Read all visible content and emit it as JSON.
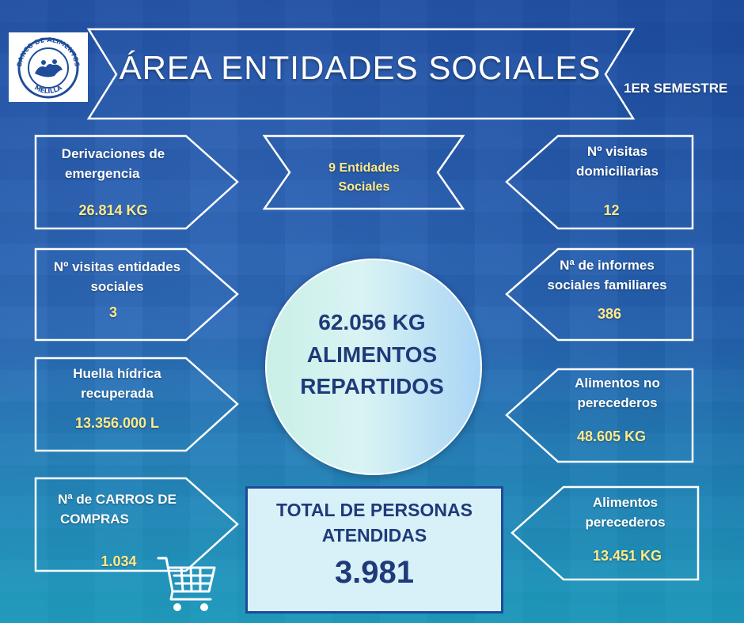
{
  "logo": {
    "arc_text": "BANCO DE ALIMENTOS",
    "city": "MELILLA"
  },
  "header": {
    "title": "ÁREA ENTIDADES SOCIALES",
    "period": "1ER SEMESTRE"
  },
  "center_banner": {
    "line1": "9 Entidades",
    "line2": "Sociales"
  },
  "left_boxes": [
    {
      "label1": "Derivaciones de",
      "label2": "emergencia",
      "value": "26.814 KG"
    },
    {
      "label1": "Nº visitas entidades",
      "label2": "sociales",
      "value": "3"
    },
    {
      "label1": "Huella hídrica",
      "label2": "recuperada",
      "value": "13.356.000 L"
    },
    {
      "label1": "Nª de CARROS DE",
      "label2": "COMPRAS",
      "value": "1.034"
    }
  ],
  "right_boxes": [
    {
      "label1": "Nº visitas",
      "label2": "domiciliarias",
      "value": "12"
    },
    {
      "label1": "Nª de informes",
      "label2": "sociales familiares",
      "value": "386"
    },
    {
      "label1": "Alimentos no",
      "label2": "perecederos",
      "value": "48.605 KG"
    },
    {
      "label1": "Alimentos",
      "label2": "perecederos",
      "value": "13.451 KG"
    }
  ],
  "center_circle": {
    "amount": "62.056 KG",
    "line2": "ALIMENTOS",
    "line3": "REPARTIDOS"
  },
  "total": {
    "label1": "TOTAL DE PERSONAS",
    "label2": "ATENDIDAS",
    "value": "3.981"
  },
  "colors": {
    "value_yellow": "#ffe98a",
    "dark_blue": "#1f3a7a",
    "frame_white": "#ffffff"
  }
}
